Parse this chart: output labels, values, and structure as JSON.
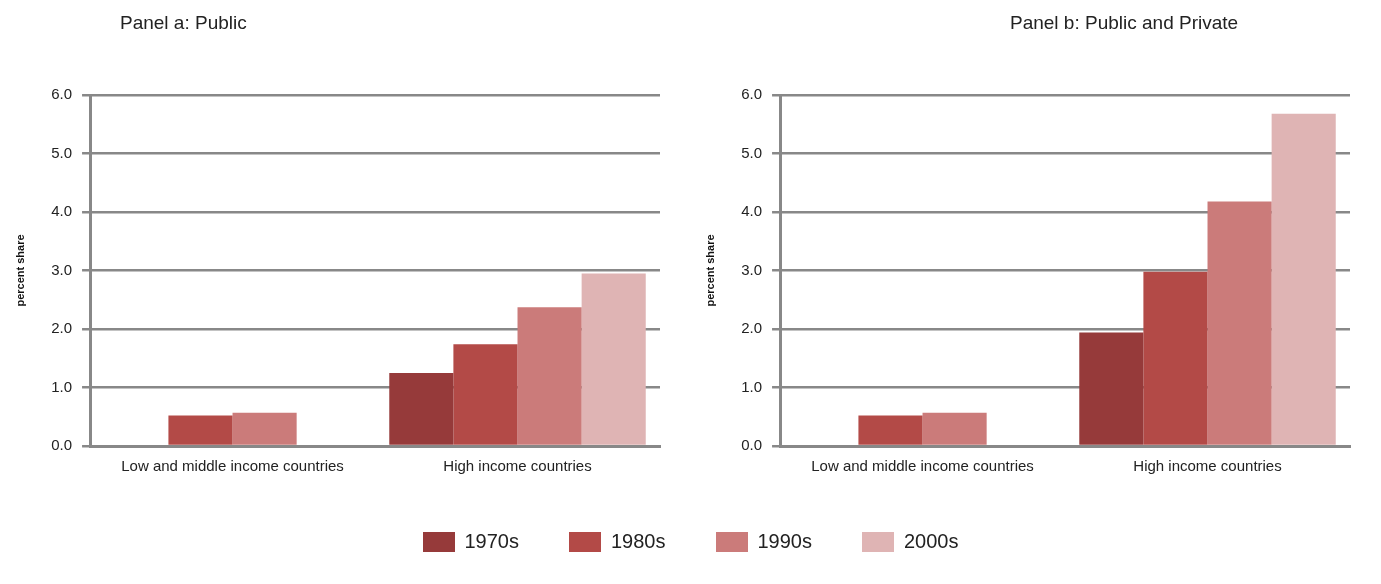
{
  "chart_data": [
    {
      "type": "bar",
      "title": "Panel a: Public",
      "ylabel": "percent share",
      "categories": [
        "Low and middle income countries",
        "High income countries"
      ],
      "series": [
        {
          "name": "1970s",
          "color": "#963a3a",
          "values": [
            null,
            1.25
          ]
        },
        {
          "name": "1980s",
          "color": "#b34a47",
          "values": [
            0.52,
            1.74
          ]
        },
        {
          "name": "1990s",
          "color": "#cb7b7a",
          "values": [
            0.57,
            2.37
          ]
        },
        {
          "name": "2000s",
          "color": "#dfb4b4",
          "values": [
            null,
            2.95
          ]
        }
      ],
      "ylim": [
        0,
        6
      ],
      "yticks": [
        {
          "value": 0,
          "label": "0.0"
        },
        {
          "value": 1,
          "label": "1.0"
        },
        {
          "value": 2,
          "label": "2.0"
        },
        {
          "value": 3,
          "label": "3.0"
        },
        {
          "value": 4,
          "label": "4.0"
        },
        {
          "value": 5,
          "label": "5.0"
        },
        {
          "value": 6,
          "label": "6.0"
        }
      ],
      "grid": "y",
      "legend": "bottom"
    },
    {
      "type": "bar",
      "title": "Panel b: Public and Private",
      "ylabel": "percent share",
      "categories": [
        "Low and middle income countries",
        "High income countries"
      ],
      "series": [
        {
          "name": "1970s",
          "color": "#963a3a",
          "values": [
            null,
            1.94
          ]
        },
        {
          "name": "1980s",
          "color": "#b34a47",
          "values": [
            0.52,
            2.98
          ]
        },
        {
          "name": "1990s",
          "color": "#cb7b7a",
          "values": [
            0.57,
            4.18
          ]
        },
        {
          "name": "2000s",
          "color": "#dfb4b4",
          "values": [
            null,
            5.68
          ]
        }
      ],
      "ylim": [
        0,
        6
      ],
      "yticks": [
        {
          "value": 0,
          "label": "0.0"
        },
        {
          "value": 1,
          "label": "1.0"
        },
        {
          "value": 2,
          "label": "2.0"
        },
        {
          "value": 3,
          "label": "3.0"
        },
        {
          "value": 4,
          "label": "4.0"
        },
        {
          "value": 5,
          "label": "5.0"
        },
        {
          "value": 6,
          "label": "6.0"
        }
      ],
      "grid": "y",
      "legend": "bottom"
    }
  ]
}
